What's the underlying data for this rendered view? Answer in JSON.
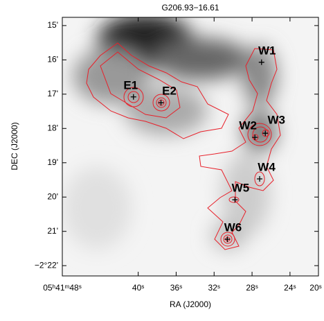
{
  "chart_data": {
    "type": "image",
    "title": "G206.93−16.61",
    "x_label": "RA (J2000)",
    "y_label": "DEC (J2000)",
    "xlim": [
      48,
      21
    ],
    "xticks": [
      {
        "value": 48,
        "label": "05ʰ41ᵐ48ˢ"
      },
      {
        "value": 40,
        "label": "40ˢ"
      },
      {
        "value": 36,
        "label": "36ˢ"
      },
      {
        "value": 32,
        "label": "32ˢ"
      },
      {
        "value": 28,
        "label": "28ˢ"
      },
      {
        "value": 24,
        "label": "24ˢ"
      },
      {
        "value": 20,
        "label": "20ˢ"
      }
    ],
    "ylim": [
      14.76,
      22.3
    ],
    "yticks": [
      {
        "value": 15,
        "label": "15'"
      },
      {
        "value": 16,
        "label": "16'"
      },
      {
        "value": 17,
        "label": "17'"
      },
      {
        "value": 18,
        "label": "18'"
      },
      {
        "value": 19,
        "label": "19'"
      },
      {
        "value": 20,
        "label": "20'"
      },
      {
        "value": 21,
        "label": "21'"
      },
      {
        "value": 22,
        "label": "−2°22'"
      }
    ],
    "sources": [
      {
        "name": "E1",
        "x": 40.5,
        "y": 17.08
      },
      {
        "name": "E2",
        "x": 37.6,
        "y": 17.25
      },
      {
        "name": "W1",
        "x": 27.0,
        "y": 16.07
      },
      {
        "name": "W2",
        "x": 27.7,
        "y": 18.26
      },
      {
        "name": "W3",
        "x": 26.6,
        "y": 18.14
      },
      {
        "name": "W4",
        "x": 27.2,
        "y": 19.47
      },
      {
        "name": "W5",
        "x": 29.8,
        "y": 20.08
      },
      {
        "name": "W6",
        "x": 30.6,
        "y": 21.23
      }
    ]
  }
}
